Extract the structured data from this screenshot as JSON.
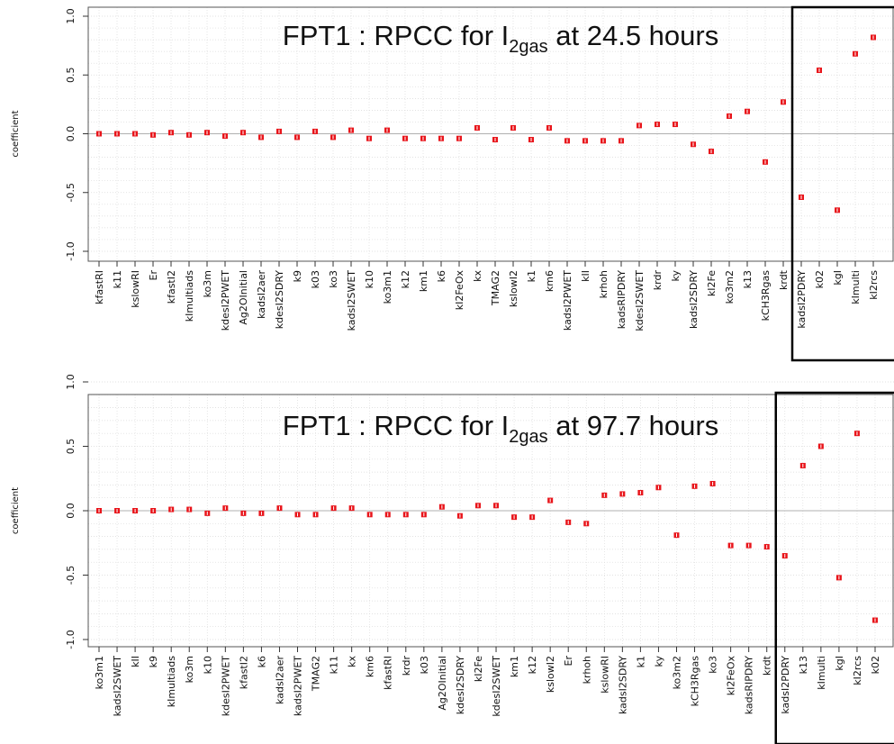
{
  "chart_data": [
    {
      "type": "scatter",
      "title": "FPT1 : RPCC for I",
      "title_sub": "2gas",
      "title_tail": " at 24.5 hours",
      "ylabel": "coefficient",
      "xlabel": "",
      "ylim": [
        -1.0,
        1.0
      ],
      "yticks": [
        "-1.0",
        "-0.5",
        "0.0",
        "0.5",
        "1.0"
      ],
      "grid": true,
      "marker_color": "#e8141a",
      "categories": [
        "kfastRI",
        "k11",
        "kslowRI",
        "Er",
        "kfastI2",
        "kImultiads",
        "ko3m",
        "kdesI2PWET",
        "Ag2OInitial",
        "kadsI2aer",
        "kdesI2SDRY",
        "k9",
        "k03",
        "ko3",
        "kadsI2SWET",
        "k10",
        "ko3m1",
        "k12",
        "km1",
        "k6",
        "kI2FeOx",
        "kx",
        "TMAG2",
        "kslowI2",
        "k1",
        "km6",
        "kadsI2PWET",
        "kII",
        "krhoh",
        "kadsRIPDRY",
        "kdesI2SWET",
        "krdr",
        "ky",
        "kadsI2SDRY",
        "kI2Fe",
        "ko3m2",
        "k13",
        "kCH3Rgas",
        "krdt",
        "kadsI2PDRY",
        "k02",
        "kgI",
        "kImulti",
        "kI2rcs"
      ],
      "values": [
        0.0,
        0.0,
        0.0,
        -0.01,
        0.01,
        -0.01,
        0.01,
        -0.02,
        0.01,
        -0.03,
        0.02,
        -0.03,
        0.02,
        -0.03,
        0.03,
        -0.04,
        0.03,
        -0.04,
        -0.04,
        -0.04,
        -0.04,
        0.05,
        -0.05,
        0.05,
        -0.05,
        0.05,
        -0.06,
        -0.06,
        -0.06,
        -0.06,
        0.07,
        0.08,
        0.08,
        -0.09,
        -0.15,
        0.15,
        0.19,
        -0.24,
        0.27,
        -0.54,
        0.54,
        -0.65,
        0.68,
        0.82
      ],
      "highlight_from": "kadsI2PDRY"
    },
    {
      "type": "scatter",
      "title": "FPT1 : RPCC for I",
      "title_sub": "2gas",
      "title_tail": " at 97.7 hours",
      "ylabel": "coefficient",
      "xlabel": "",
      "ylim": [
        -1.0,
        1.0
      ],
      "yticks": [
        "-1.0",
        "-0.5",
        "0.0",
        "0.5",
        "1.0"
      ],
      "grid": true,
      "marker_color": "#e8141a",
      "categories": [
        "ko3m1",
        "kadsI2SWET",
        "kII",
        "k9",
        "kImultiads",
        "ko3m",
        "k10",
        "kdesI2PWET",
        "kfastI2",
        "k6",
        "kadsI2aer",
        "kadsI2PWET",
        "TMAG2",
        "k11",
        "kx",
        "km6",
        "kfastRI",
        "krdr",
        "k03",
        "Ag2OInitial",
        "kdesI2SDRY",
        "kI2Fe",
        "kdesI2SWET",
        "km1",
        "k12",
        "kslowI2",
        "Er",
        "krhoh",
        "kslowRI",
        "kadsI2SDRY",
        "k1",
        "ky",
        "ko3m2",
        "kCH3Rgas",
        "ko3",
        "kI2FeOx",
        "kadsRIPDRY",
        "krdt",
        "kadsI2PDRY",
        "k13",
        "kImulti",
        "kgI",
        "kI2rcs",
        "k02"
      ],
      "values": [
        0.0,
        0.0,
        0.0,
        0.0,
        0.01,
        0.01,
        -0.02,
        0.02,
        -0.02,
        -0.02,
        0.02,
        -0.03,
        -0.03,
        0.02,
        0.02,
        -0.03,
        -0.03,
        -0.03,
        -0.03,
        0.03,
        -0.04,
        0.04,
        0.04,
        -0.05,
        -0.05,
        0.08,
        -0.09,
        -0.1,
        0.12,
        0.13,
        0.14,
        0.18,
        -0.19,
        0.19,
        0.21,
        -0.27,
        -0.27,
        -0.28,
        -0.35,
        0.35,
        0.5,
        -0.52,
        0.6,
        -0.85
      ],
      "highlight_from": "kadsI2PDRY"
    }
  ]
}
